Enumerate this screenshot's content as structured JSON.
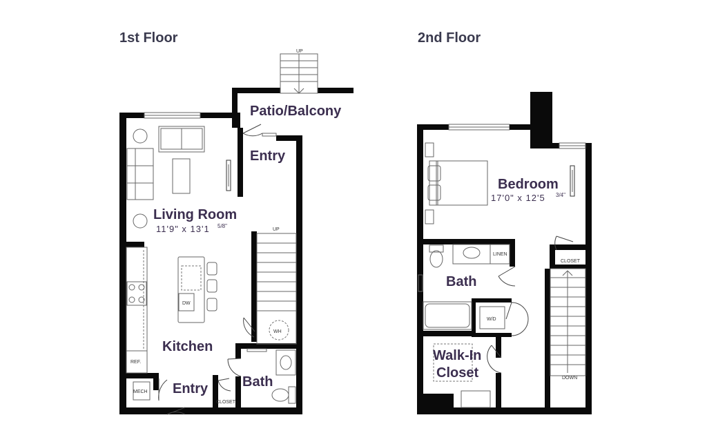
{
  "floors": [
    {
      "title": "1st Floor",
      "rooms": {
        "patio": "Patio/Balcony",
        "entry_top": "Entry",
        "living": "Living Room",
        "living_dim": "11'9\" x 13'1",
        "living_dim_frac": "5/8\"",
        "kitchen": "Kitchen",
        "entry_bottom": "Entry",
        "bath": "Bath"
      },
      "labels": {
        "up_top": "UP",
        "up_stairs": "UP",
        "dw": "DW",
        "wh": "WH",
        "ref": "REF.",
        "mech": "MECH",
        "closet": "CLOSET"
      }
    },
    {
      "title": "2nd Floor",
      "rooms": {
        "bedroom": "Bedroom",
        "bedroom_dim": "17'0\" x 12'5",
        "bedroom_dim_frac": "3/4\"",
        "bath": "Bath",
        "walkin_line1": "Walk-In",
        "walkin_line2": "Closet"
      },
      "labels": {
        "linen": "LINEN",
        "closet": "CLOSET",
        "wd": "W/D",
        "down": "DOWN"
      }
    }
  ]
}
